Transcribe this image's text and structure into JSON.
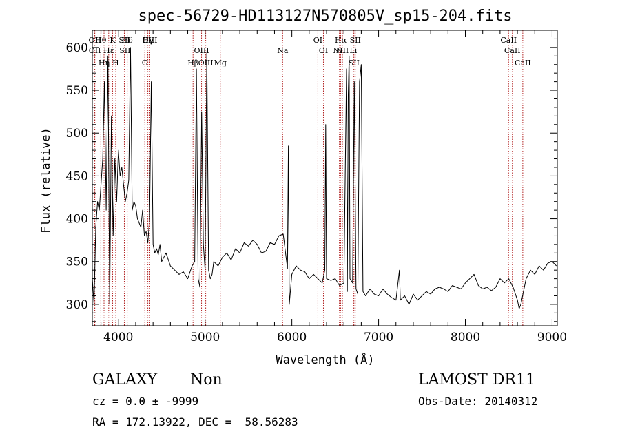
{
  "chart_data": {
    "type": "line",
    "title": "spec-56729-HD113127N570805V_sp15-204.fits",
    "xlabel": "Wavelength (Å)",
    "ylabel": "Flux (relative)",
    "xlim": [
      3700,
      9060
    ],
    "ylim": [
      275,
      620
    ],
    "xticks": [
      4000,
      5000,
      6000,
      7000,
      8000,
      9000
    ],
    "yticks": [
      300,
      350,
      400,
      450,
      500,
      550,
      600
    ],
    "grid": false,
    "series": [
      {
        "x": [
          3700,
          3720,
          3740,
          3760,
          3780,
          3800,
          3820,
          3840,
          3860,
          3880,
          3900,
          3920,
          3940,
          3960,
          3980,
          4000,
          4020,
          4040,
          4060,
          4080,
          4100,
          4120,
          4140,
          4160,
          4180,
          4200,
          4220,
          4240,
          4260,
          4280,
          4300,
          4320,
          4340,
          4360,
          4380,
          4400,
          4420,
          4440,
          4460,
          4480,
          4500,
          4550,
          4600,
          4650,
          4700,
          4750,
          4800,
          4850,
          4880,
          4900,
          4920,
          4940,
          4960,
          4980,
          5000,
          5020,
          5040,
          5060,
          5080,
          5100,
          5150,
          5200,
          5250,
          5300,
          5350,
          5400,
          5450,
          5500,
          5550,
          5600,
          5650,
          5700,
          5750,
          5800,
          5850,
          5900,
          5950,
          5960,
          5970,
          6000,
          6050,
          6100,
          6150,
          6200,
          6250,
          6300,
          6350,
          6380,
          6390,
          6400,
          6450,
          6500,
          6550,
          6600,
          6630,
          6640,
          6650,
          6660,
          6670,
          6700,
          6720,
          6740,
          6760,
          6780,
          6800,
          6820,
          6850,
          6900,
          6950,
          7000,
          7050,
          7100,
          7150,
          7200,
          7240,
          7250,
          7300,
          7350,
          7400,
          7450,
          7500,
          7550,
          7600,
          7650,
          7700,
          7750,
          7800,
          7850,
          7900,
          7950,
          8000,
          8050,
          8100,
          8150,
          8200,
          8250,
          8300,
          8350,
          8400,
          8450,
          8500,
          8550,
          8600,
          8620,
          8640,
          8660,
          8700,
          8750,
          8800,
          8850,
          8900,
          8950,
          9000,
          9050
        ],
        "values": [
          330,
          300,
          390,
          420,
          410,
          440,
          470,
          560,
          410,
          590,
          300,
          520,
          380,
          470,
          420,
          480,
          450,
          460,
          440,
          420,
          430,
          445,
          600,
          410,
          420,
          415,
          400,
          395,
          390,
          410,
          380,
          385,
          372,
          400,
          560,
          370,
          360,
          365,
          358,
          370,
          350,
          360,
          345,
          340,
          335,
          338,
          330,
          345,
          350,
          575,
          330,
          320,
          525,
          370,
          340,
          595,
          340,
          330,
          335,
          350,
          345,
          355,
          360,
          352,
          365,
          360,
          372,
          368,
          375,
          370,
          360,
          362,
          372,
          370,
          380,
          382,
          342,
          485,
          300,
          335,
          345,
          340,
          338,
          330,
          335,
          330,
          325,
          340,
          510,
          330,
          328,
          330,
          322,
          325,
          575,
          315,
          545,
          590,
          330,
          325,
          560,
          318,
          312,
          560,
          580,
          315,
          310,
          318,
          312,
          310,
          318,
          312,
          308,
          305,
          340,
          305,
          310,
          300,
          312,
          305,
          310,
          315,
          312,
          318,
          320,
          318,
          315,
          322,
          320,
          318,
          325,
          330,
          335,
          322,
          318,
          320,
          316,
          320,
          330,
          325,
          330,
          320,
          305,
          295,
          300,
          310,
          330,
          340,
          335,
          345,
          340,
          348,
          350,
          345
        ]
      }
    ],
    "lines": [
      {
        "label": "Hθ",
        "x": 3798
      },
      {
        "label": "OII",
        "x": 3727
      },
      {
        "label": "OII",
        "x": 3729
      },
      {
        "label": "Hη",
        "x": 3835
      },
      {
        "label": "Hε",
        "x": 3889
      },
      {
        "label": "K",
        "x": 3934
      },
      {
        "label": "H",
        "x": 3969
      },
      {
        "label": "SII",
        "x": 4069
      },
      {
        "label": "Hδ",
        "x": 4102
      },
      {
        "label": "SII",
        "x": 4076
      },
      {
        "label": "OIII",
        "x": 4363
      },
      {
        "label": "Hγ",
        "x": 4340
      },
      {
        "label": "G",
        "x": 4305
      },
      {
        "label": "OIII",
        "x": 4959
      },
      {
        "label": "OIII",
        "x": 5007
      },
      {
        "label": "Hβ",
        "x": 4861
      },
      {
        "label": "Mg",
        "x": 5175
      },
      {
        "label": "Na",
        "x": 5894
      },
      {
        "label": "OI",
        "x": 6300
      },
      {
        "label": "OI",
        "x": 6364
      },
      {
        "label": "Hα",
        "x": 6563
      },
      {
        "label": "NII",
        "x": 6548
      },
      {
        "label": "NII",
        "x": 6583
      },
      {
        "label": "SII",
        "x": 6716
      },
      {
        "label": "Li",
        "x": 6708
      },
      {
        "label": "SII",
        "x": 6731
      },
      {
        "label": "CaII",
        "x": 8498
      },
      {
        "label": "CaII",
        "x": 8542
      },
      {
        "label": "CaII",
        "x": 8662
      }
    ]
  },
  "footer": {
    "object_class": "GALAXY",
    "subclass": "Non",
    "survey": "LAMOST DR11",
    "cz": "cz = 0.0 ± -9999",
    "obs_date": "Obs-Date: 20140312",
    "radec": "RA = 172.13922, DEC =  58.56283"
  }
}
